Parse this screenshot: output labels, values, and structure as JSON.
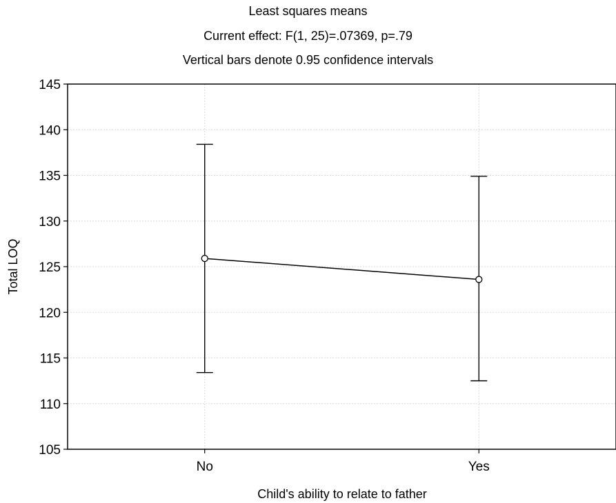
{
  "chart_data": {
    "type": "line",
    "title": "Least squares means",
    "subtitle": "Current effect: F(1, 25)=.07369, p=.79",
    "note": "Vertical bars denote 0.95 confidence intervals",
    "xlabel": "Child's ability to relate to father",
    "ylabel": "Total LOQ",
    "categories": [
      "No",
      "Yes"
    ],
    "series": [
      {
        "values": [
          125.9,
          123.6
        ],
        "ci_lower": [
          113.4,
          112.5
        ],
        "ci_upper": [
          138.4,
          134.9
        ]
      }
    ],
    "ylim": [
      105,
      145
    ],
    "yticks": [
      105,
      110,
      115,
      120,
      125,
      130,
      135,
      140,
      145
    ],
    "grid": true,
    "legend": "none"
  },
  "colors": {
    "line": "#000000",
    "grid": "#d9d9d9",
    "marker_fill": "#ffffff"
  }
}
